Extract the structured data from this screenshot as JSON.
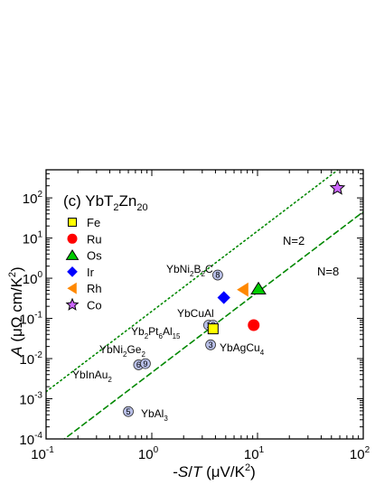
{
  "chart_data": {
    "type": "scatter",
    "title_main": "(c) YbT",
    "title_sub1": "2",
    "title_mid": "Zn",
    "title_sub2": "20",
    "xlabel_parts": [
      "-",
      "S",
      "/",
      "T",
      " (μV/K",
      "2",
      ")"
    ],
    "ylabel_parts": [
      "A",
      " (μΩ cm/K",
      "2",
      ")"
    ],
    "x_scale": "log",
    "y_scale": "log",
    "xlim": [
      0.1,
      100
    ],
    "ylim": [
      0.0001,
      500
    ],
    "x_ticks": [
      {
        "value": 0.1,
        "base": "10",
        "exp": "-1"
      },
      {
        "value": 1,
        "base": "10",
        "exp": "0"
      },
      {
        "value": 10,
        "base": "10",
        "exp": "1"
      },
      {
        "value": 100,
        "base": "10",
        "exp": "2"
      }
    ],
    "y_ticks": [
      {
        "value": 0.0001,
        "base": "10",
        "exp": "-4"
      },
      {
        "value": 0.001,
        "base": "10",
        "exp": "-3"
      },
      {
        "value": 0.01,
        "base": "10",
        "exp": "-2"
      },
      {
        "value": 0.1,
        "base": "10",
        "exp": "-1"
      },
      {
        "value": 1,
        "base": "10",
        "exp": "0"
      },
      {
        "value": 10,
        "base": "10",
        "exp": "1"
      },
      {
        "value": 100,
        "base": "10",
        "exp": "2"
      }
    ],
    "series": [
      {
        "name": "Fe",
        "marker": "square",
        "color": "#ffff00",
        "x": [
          3.8
        ],
        "y": [
          0.055
        ]
      },
      {
        "name": "Ru",
        "marker": "circle",
        "color": "#ff0000",
        "x": [
          9.2
        ],
        "y": [
          0.068
        ]
      },
      {
        "name": "Os",
        "marker": "triangle-up",
        "color": "#00cc00",
        "x": [
          10.2
        ],
        "y": [
          0.55
        ]
      },
      {
        "name": "Ir",
        "marker": "diamond",
        "color": "#0000ff",
        "x": [
          4.8
        ],
        "y": [
          0.33
        ]
      },
      {
        "name": "Rh",
        "marker": "triangle-left",
        "color": "#ff8800",
        "x": [
          7.3
        ],
        "y": [
          0.52
        ]
      },
      {
        "name": "Co",
        "marker": "star",
        "color": "#cc66ff",
        "x": [
          57
        ],
        "y": [
          175
        ]
      }
    ],
    "reference_points": [
      {
        "num": "1",
        "x": 3.45,
        "y": 0.068,
        "label": [
          "YbCuAl"
        ]
      },
      {
        "num": "2",
        "x": 3.8,
        "y": 0.068,
        "label": []
      },
      {
        "num": "3",
        "x": 3.6,
        "y": 0.022,
        "label": [
          "YbAgCu",
          "4"
        ]
      },
      {
        "num": "5",
        "x": 0.6,
        "y": 0.00048,
        "label": [
          "YbAl",
          "3"
        ]
      },
      {
        "num": "6",
        "x": 0.75,
        "y": 0.007,
        "label": [
          "YbInAu",
          "2"
        ]
      },
      {
        "num": "8",
        "x": 4.2,
        "y": 1.2,
        "label": [
          "YbNi",
          "2",
          "B",
          "2",
          "C"
        ]
      },
      {
        "num": "9",
        "x": 0.87,
        "y": 0.0075,
        "label": [
          "YbNi",
          "2",
          "Ge",
          "2"
        ]
      }
    ],
    "extra_labels": {
      "yb2pt": [
        "Yb",
        "2",
        "Pt",
        "6",
        "Al",
        "15"
      ]
    },
    "lines": [
      {
        "name": "N=2",
        "style": "dotted",
        "color": "#008800",
        "A_over_x2": 0.15
      },
      {
        "name": "N=8",
        "style": "dashed",
        "color": "#008800",
        "A_over_x2": 0.0045
      }
    ],
    "grid": false,
    "legend_position": "top-left"
  }
}
